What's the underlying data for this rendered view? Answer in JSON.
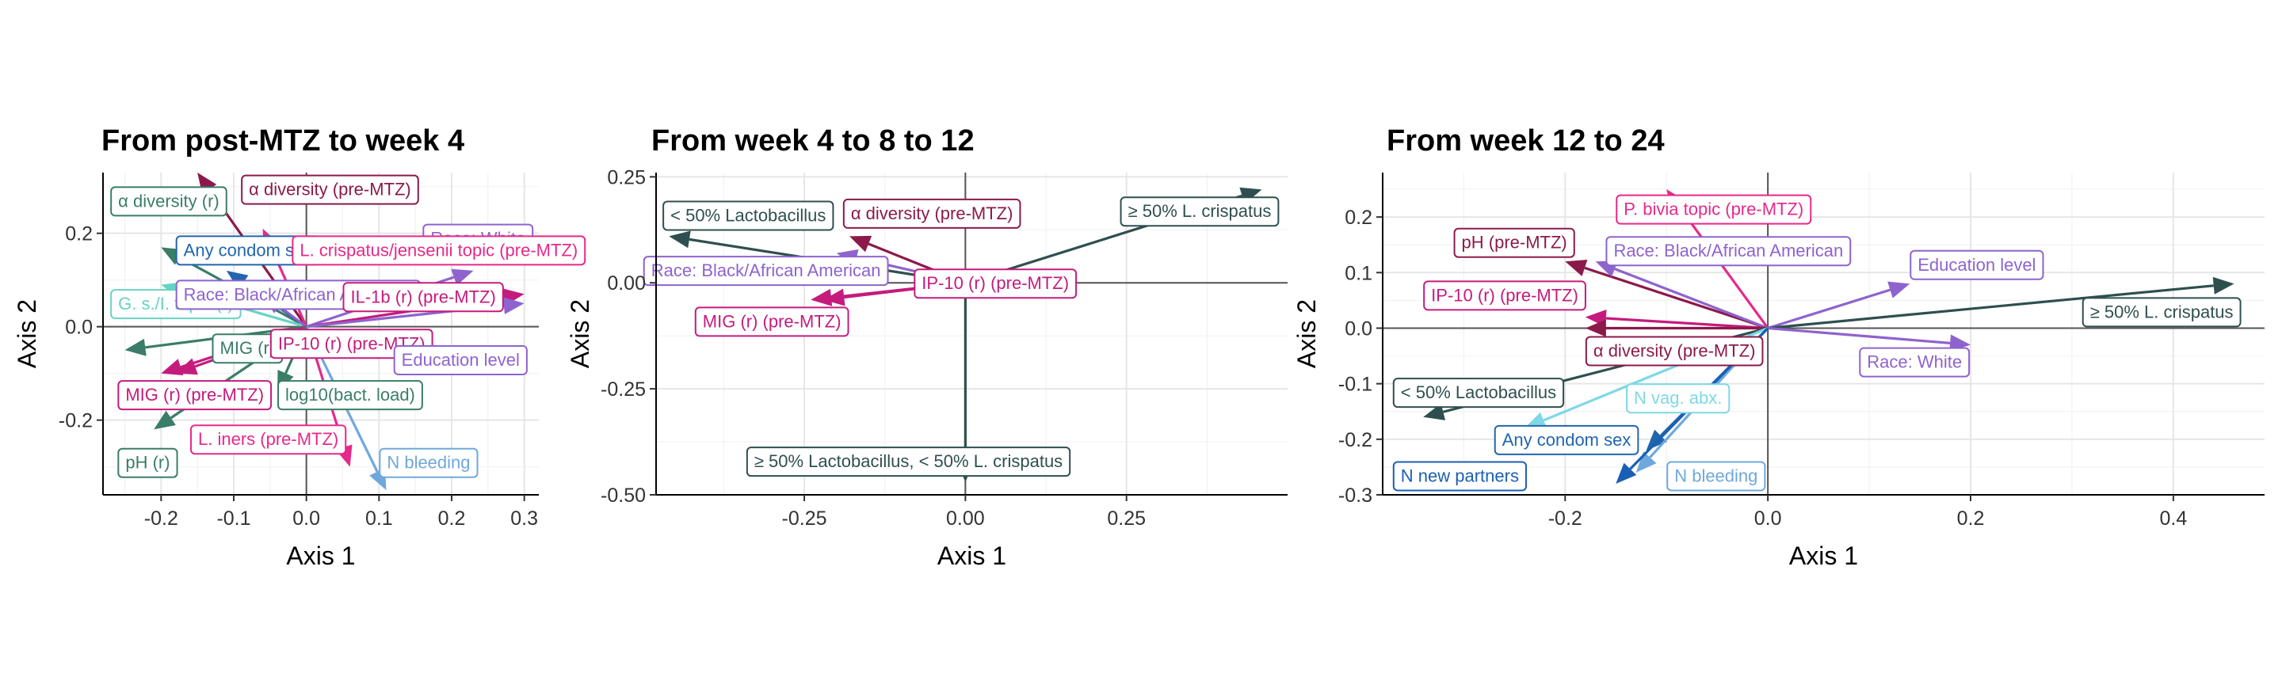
{
  "chart_data": [
    {
      "type": "biplot",
      "title": "From post-MTZ to week 4",
      "xlabel": "Axis 1",
      "ylabel": "Axis 2",
      "xlim": [
        -0.28,
        0.32
      ],
      "ylim": [
        -0.36,
        0.33
      ],
      "xticks": [
        -0.2,
        -0.1,
        0.0,
        0.1,
        0.2,
        0.3
      ],
      "xtick_labels": [
        "-0.2",
        "-0.1",
        "0.0",
        "0.1",
        "0.2",
        "0.3"
      ],
      "yticks": [
        -0.2,
        0.0,
        0.2
      ],
      "ytick_labels": [
        "-0.2",
        "0.0",
        "0.2"
      ],
      "grid": true,
      "vectors": [
        {
          "label": "α diversity (r)",
          "x": -0.2,
          "y": 0.17,
          "lx": -0.27,
          "ly": 0.27,
          "color": "#3a7d68"
        },
        {
          "label": "α diversity (pre-MTZ)",
          "x": -0.15,
          "y": 0.33,
          "lx": -0.09,
          "ly": 0.295,
          "color": "#8b1a4a"
        },
        {
          "label": "Any condom sex",
          "x": -0.11,
          "y": 0.12,
          "lx": -0.18,
          "ly": 0.165,
          "color": "#2166ac"
        },
        {
          "label": "Race: White",
          "x": 0.23,
          "y": 0.12,
          "lx": 0.16,
          "ly": 0.19,
          "color": "#8e63ce"
        },
        {
          "label": "L. crispatus/jensenii topic (pre-MTZ)",
          "x": -0.06,
          "y": 0.21,
          "lx": -0.02,
          "ly": 0.165,
          "color": "#e7298a"
        },
        {
          "label": "G. s./I. topic (r)",
          "x": -0.2,
          "y": 0.09,
          "lx": -0.27,
          "ly": 0.05,
          "color": "#66d4c2"
        },
        {
          "label": "Race: Black/African American",
          "x": -0.06,
          "y": 0.07,
          "lx": -0.18,
          "ly": 0.07,
          "color": "#8e63ce"
        },
        {
          "label": "IL-1b (r) (pre-MTZ)",
          "x": 0.3,
          "y": 0.07,
          "lx": 0.05,
          "ly": 0.065,
          "color": "#c51b7d"
        },
        {
          "label": "MIG (r)",
          "x": -0.25,
          "y": -0.05,
          "lx": -0.13,
          "ly": -0.045,
          "color": "#3a7d68"
        },
        {
          "label": "IP-10 (r) (pre-MTZ)",
          "x": -0.2,
          "y": -0.1,
          "lx": -0.05,
          "ly": -0.035,
          "color": "#c51b7d"
        },
        {
          "label": "Education level",
          "x": 0.3,
          "y": 0.05,
          "lx": 0.12,
          "ly": -0.07,
          "color": "#8e63ce"
        },
        {
          "label": "MIG (r) (pre-MTZ)",
          "x": -0.18,
          "y": -0.1,
          "lx": -0.26,
          "ly": -0.145,
          "color": "#c51b7d"
        },
        {
          "label": "log10(bact. load)",
          "x": -0.04,
          "y": -0.14,
          "lx": -0.04,
          "ly": -0.145,
          "color": "#3a7d68"
        },
        {
          "label": "L. iners (pre-MTZ)",
          "x": 0.06,
          "y": -0.3,
          "lx": -0.16,
          "ly": -0.24,
          "color": "#e7298a"
        },
        {
          "label": "N bleeding",
          "x": 0.11,
          "y": -0.35,
          "lx": 0.1,
          "ly": -0.29,
          "color": "#6fa8dc"
        },
        {
          "label": "pH (r)",
          "x": -0.21,
          "y": -0.22,
          "lx": -0.26,
          "ly": -0.29,
          "color": "#3a7d68"
        }
      ]
    },
    {
      "type": "biplot",
      "title": "From week 4 to 8 to 12",
      "xlabel": "Axis 1",
      "ylabel": "Axis 2",
      "xlim": [
        -0.48,
        0.5
      ],
      "ylim": [
        -0.5,
        0.26
      ],
      "xticks": [
        -0.25,
        0.0,
        0.25
      ],
      "xtick_labels": [
        "-0.25",
        "0.00",
        "0.25"
      ],
      "yticks": [
        -0.5,
        -0.25,
        0.0,
        0.25
      ],
      "ytick_labels": [
        "-0.50",
        "-0.25",
        "0.00",
        "0.25"
      ],
      "grid": true,
      "vectors": [
        {
          "label": "< 50% Lactobacillus",
          "x": -0.46,
          "y": 0.11,
          "lx": -0.47,
          "ly": 0.16,
          "color": "#2f4f4f"
        },
        {
          "label": "α diversity (pre-MTZ)",
          "x": -0.18,
          "y": 0.11,
          "lx": -0.19,
          "ly": 0.165,
          "color": "#8b1a4a"
        },
        {
          "label": "≥ 50% L. crispatus",
          "x": 0.46,
          "y": 0.22,
          "lx": 0.24,
          "ly": 0.17,
          "color": "#2f4f4f"
        },
        {
          "label": "Race: Black/African American",
          "x": -0.2,
          "y": 0.07,
          "lx": -0.5,
          "ly": 0.03,
          "color": "#8e63ce"
        },
        {
          "label": "IP-10 (r) (pre-MTZ)",
          "x": -0.22,
          "y": -0.04,
          "lx": -0.08,
          "ly": 0.0,
          "color": "#c51b7d"
        },
        {
          "label": "MIG (r) (pre-MTZ)",
          "x": -0.24,
          "y": -0.04,
          "lx": -0.42,
          "ly": -0.09,
          "color": "#c51b7d"
        },
        {
          "label": "≥ 50% Lactobacillus, < 50% L. crispatus",
          "x": 0.0,
          "y": -0.47,
          "lx": -0.34,
          "ly": -0.42,
          "color": "#2f4f4f"
        }
      ]
    },
    {
      "type": "biplot",
      "title": "From week 12 to 24",
      "xlabel": "Axis 1",
      "ylabel": "Axis 2",
      "xlim": [
        -0.38,
        0.49
      ],
      "ylim": [
        -0.3,
        0.28
      ],
      "xticks": [
        -0.2,
        0.0,
        0.2,
        0.4
      ],
      "xtick_labels": [
        "-0.2",
        "0.0",
        "0.2",
        "0.4"
      ],
      "yticks": [
        -0.3,
        -0.2,
        -0.1,
        0.0,
        0.1,
        0.2
      ],
      "ytick_labels": [
        "-0.3",
        "-0.2",
        "-0.1",
        "0.0",
        "0.1",
        "0.2"
      ],
      "grid": true,
      "vectors": [
        {
          "label": "P. bivia topic (pre-MTZ)",
          "x": -0.1,
          "y": 0.25,
          "lx": -0.15,
          "ly": 0.215,
          "color": "#e7298a"
        },
        {
          "label": "pH (pre-MTZ)",
          "x": -0.2,
          "y": 0.12,
          "lx": -0.31,
          "ly": 0.155,
          "color": "#8b1a4a"
        },
        {
          "label": "Race: Black/African American",
          "x": -0.17,
          "y": 0.12,
          "lx": -0.16,
          "ly": 0.14,
          "color": "#8e63ce"
        },
        {
          "label": "Education level",
          "x": 0.14,
          "y": 0.08,
          "lx": 0.14,
          "ly": 0.115,
          "color": "#8e63ce"
        },
        {
          "label": "IP-10 (r) (pre-MTZ)",
          "x": -0.18,
          "y": 0.02,
          "lx": -0.34,
          "ly": 0.06,
          "color": "#c51b7d"
        },
        {
          "label": "≥ 50% L. crispatus",
          "x": 0.46,
          "y": 0.08,
          "lx": 0.31,
          "ly": 0.03,
          "color": "#2f4f4f"
        },
        {
          "label": "Race: White",
          "x": 0.2,
          "y": -0.03,
          "lx": 0.09,
          "ly": -0.06,
          "color": "#8e63ce"
        },
        {
          "label": "α diversity (pre-MTZ)",
          "x": -0.18,
          "y": 0.0,
          "lx": -0.18,
          "ly": -0.04,
          "color": "#8b1a4a"
        },
        {
          "label": "< 50% Lactobacillus",
          "x": -0.34,
          "y": -0.16,
          "lx": -0.37,
          "ly": -0.115,
          "color": "#2f4f4f"
        },
        {
          "label": "N vag. abx.",
          "x": -0.24,
          "y": -0.18,
          "lx": -0.14,
          "ly": -0.125,
          "color": "#7fd8e6"
        },
        {
          "label": "Any condom sex",
          "x": -0.12,
          "y": -0.22,
          "lx": -0.27,
          "ly": -0.2,
          "color": "#2166ac"
        },
        {
          "label": "N bleeding",
          "x": -0.13,
          "y": -0.26,
          "lx": -0.1,
          "ly": -0.265,
          "color": "#6fa8dc"
        },
        {
          "label": "N new partners",
          "x": -0.15,
          "y": -0.28,
          "lx": -0.37,
          "ly": -0.265,
          "color": "#1a5fb4"
        }
      ]
    }
  ]
}
